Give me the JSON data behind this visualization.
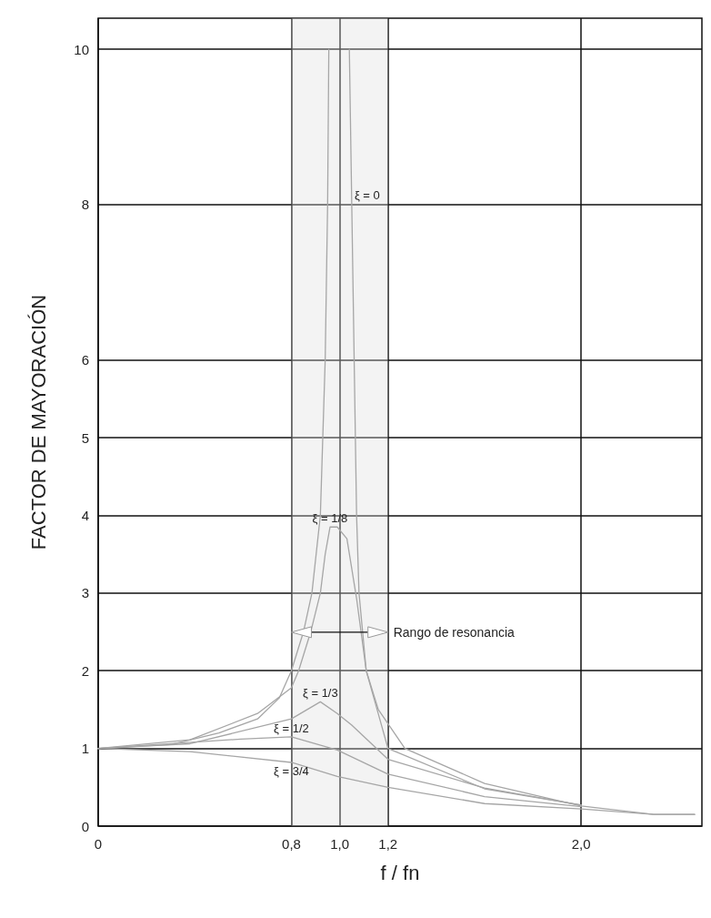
{
  "chart_data": {
    "type": "line",
    "xlabel": "f / fn",
    "ylabel": "FACTOR DE MAYORACIÓN",
    "xlim": [
      0,
      2.5
    ],
    "ylim": [
      0,
      10.4
    ],
    "xticks": [
      0,
      {
        "value": 0.8,
        "label": "0,8"
      },
      {
        "value": 1.0,
        "label": "1,0"
      },
      {
        "value": 1.2,
        "label": "1,2"
      },
      {
        "value": 2.0,
        "label": "2,0"
      }
    ],
    "yticks": [
      0,
      1,
      2,
      3,
      4,
      5,
      6,
      8,
      10
    ],
    "grid": true,
    "legend": false,
    "marker": "none",
    "line_style": "solid",
    "bands": [
      {
        "axis": "x",
        "from": 0.8,
        "to": 1.2,
        "label": "Rango de resonancia"
      }
    ],
    "series": [
      {
        "name": "ξ = 0",
        "color": "#a6a6a6",
        "x": [
          0,
          0.3,
          0.5,
          0.66,
          0.75,
          0.8,
          0.85,
          0.885,
          0.92,
          0.93,
          0.94,
          0.95,
          0.955,
          1.0,
          1.04,
          1.05,
          1.06,
          1.065,
          1.07,
          1.08,
          1.11,
          1.16,
          1.27,
          1.6,
          2.0,
          2.3,
          2.47
        ],
        "values": [
          1.0,
          1.05,
          1.2,
          1.38,
          1.65,
          2.0,
          2.5,
          3.0,
          4.0,
          5.0,
          6.0,
          8.0,
          10.0,
          null,
          10.0,
          8.0,
          6.0,
          5.0,
          4.0,
          3.0,
          2.0,
          1.5,
          1.0,
          0.55,
          0.26,
          0.15,
          0.15
        ]
      },
      {
        "name": "ξ = 1/8",
        "color": "#a6a6a6",
        "x": [
          0,
          0.38,
          0.66,
          0.8,
          0.83,
          0.88,
          0.92,
          0.94,
          0.96,
          0.99,
          1.03,
          1.07,
          1.11,
          1.2,
          1.6,
          2.0
        ],
        "values": [
          1.0,
          1.11,
          1.45,
          1.78,
          2.0,
          2.5,
          3.0,
          3.5,
          3.85,
          3.85,
          3.7,
          2.93,
          2.0,
          1.0,
          0.48,
          0.27
        ]
      },
      {
        "name": "ξ = 1/3",
        "color": "#a6a6a6",
        "x": [
          0,
          0.38,
          0.8,
          0.92,
          0.99,
          1.05,
          1.2,
          1.6,
          2.0
        ],
        "values": [
          1.0,
          1.06,
          1.38,
          1.6,
          1.45,
          1.3,
          0.86,
          0.49,
          0.27
        ]
      },
      {
        "name": "ξ = 1/2",
        "color": "#a6a6a6",
        "x": [
          0,
          0.59,
          0.8,
          0.99,
          1.2,
          1.6,
          2.0
        ],
        "values": [
          1.0,
          1.12,
          1.15,
          0.98,
          0.67,
          0.38,
          0.25
        ]
      },
      {
        "name": "ξ = 3/4",
        "color": "#a6a6a6",
        "x": [
          0,
          0.38,
          0.8,
          0.99,
          1.2,
          1.6,
          2.0,
          2.3,
          2.47
        ],
        "values": [
          1.0,
          0.96,
          0.82,
          0.64,
          0.5,
          0.29,
          0.22,
          0.15,
          0.15
        ]
      }
    ]
  }
}
